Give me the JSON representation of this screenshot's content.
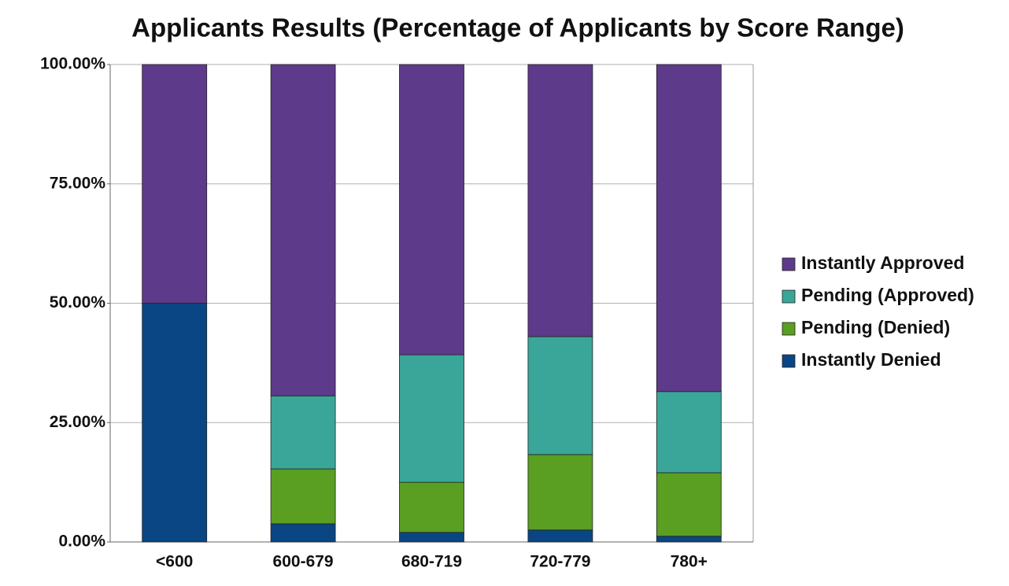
{
  "chart_data": {
    "type": "stacked-bar",
    "title": "Applicants Results (Percentage of Applicants by Score Range)",
    "categories": [
      "<600",
      "600-679",
      "680-719",
      "720-779",
      "780+"
    ],
    "series": [
      {
        "name": "Instantly Denied",
        "color": "#0b4684",
        "values": [
          50,
          3.8,
          2.0,
          2.5,
          1.2
        ]
      },
      {
        "name": "Pending (Denied)",
        "color": "#5a9e22",
        "values": [
          0,
          11.5,
          10.5,
          15.8,
          13.3
        ]
      },
      {
        "name": "Pending (Approved)",
        "color": "#3aa699",
        "values": [
          0,
          15.3,
          26.7,
          24.7,
          17.0
        ]
      },
      {
        "name": "Instantly Approved",
        "color": "#5e3a8a",
        "values": [
          50,
          69.4,
          60.8,
          57.0,
          68.5
        ]
      }
    ],
    "ylim": [
      0,
      100
    ],
    "yticks": [
      {
        "value": 0,
        "label": "0.00%"
      },
      {
        "value": 25,
        "label": "25.00%"
      },
      {
        "value": 50,
        "label": "50.00%"
      },
      {
        "value": 75,
        "label": "75.00%"
      },
      {
        "value": 100,
        "label": "100.00%"
      }
    ],
    "grid": true,
    "legend": "right"
  }
}
